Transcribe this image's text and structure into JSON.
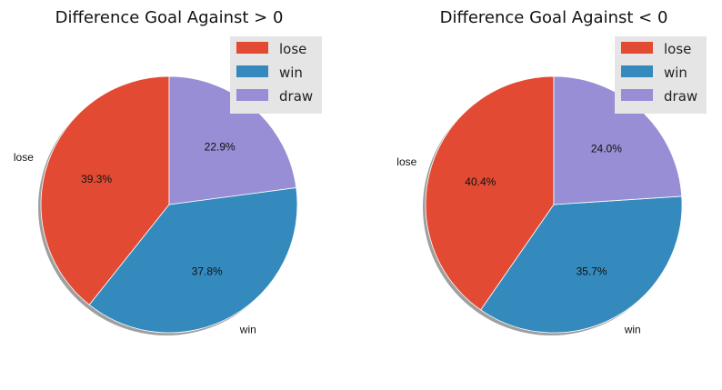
{
  "chart_data": [
    {
      "type": "pie",
      "title": "Difference Goal Against > 0",
      "labels": [
        "lose",
        "win",
        "draw"
      ],
      "values": [
        39.3,
        37.8,
        22.9
      ],
      "value_labels": [
        "39.3%",
        "37.8%",
        "22.9%"
      ],
      "colors": [
        "#E24A33",
        "#348ABD",
        "#988ED5"
      ],
      "start_angle_deg": 90,
      "direction": "counterclockwise",
      "shadow": true,
      "legend": {
        "position": "top-right",
        "entries": [
          "lose",
          "win",
          "draw"
        ]
      }
    },
    {
      "type": "pie",
      "title": "Difference Goal Against < 0",
      "labels": [
        "lose",
        "win",
        "draw"
      ],
      "values": [
        40.4,
        35.7,
        24.0
      ],
      "value_labels": [
        "40.4%",
        "35.7%",
        "24.0%"
      ],
      "colors": [
        "#E24A33",
        "#348ABD",
        "#988ED5"
      ],
      "start_angle_deg": 90,
      "direction": "counterclockwise",
      "shadow": true,
      "legend": {
        "position": "top-right",
        "entries": [
          "lose",
          "win",
          "draw"
        ]
      }
    }
  ]
}
